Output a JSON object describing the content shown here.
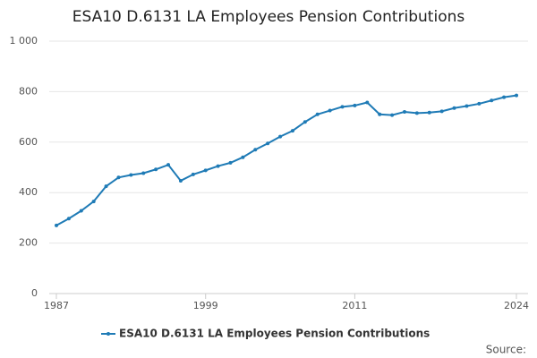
{
  "chart_data": {
    "type": "line",
    "title": "ESA10 D.6131 LA Employees Pension Contributions",
    "x": [
      1987,
      1988,
      1989,
      1990,
      1991,
      1992,
      1993,
      1994,
      1995,
      1996,
      1997,
      1998,
      1999,
      2000,
      2001,
      2002,
      2003,
      2004,
      2005,
      2006,
      2007,
      2008,
      2009,
      2010,
      2011,
      2012,
      2013,
      2014,
      2015,
      2016,
      2017,
      2018,
      2019,
      2020,
      2021,
      2022,
      2023,
      2024
    ],
    "series": [
      {
        "name": "ESA10 D.6131 LA Employees Pension Contributions",
        "color": "#1f7bb6",
        "values": [
          270,
          297,
          328,
          365,
          425,
          460,
          470,
          477,
          492,
          510,
          447,
          472,
          488,
          505,
          518,
          540,
          570,
          595,
          622,
          645,
          680,
          710,
          725,
          740,
          745,
          757,
          710,
          707,
          720,
          715,
          717,
          722,
          735,
          743,
          752,
          765,
          778,
          785
        ]
      }
    ],
    "xlim": [
      1987,
      2024
    ],
    "xticks": [
      1987,
      1999,
      2011,
      2024
    ],
    "ylim": [
      0,
      1000
    ],
    "yticks": [
      0,
      200,
      400,
      600,
      800,
      {
        "value": 1000,
        "label": "1 000"
      }
    ],
    "grid": true,
    "source": "Source:"
  }
}
